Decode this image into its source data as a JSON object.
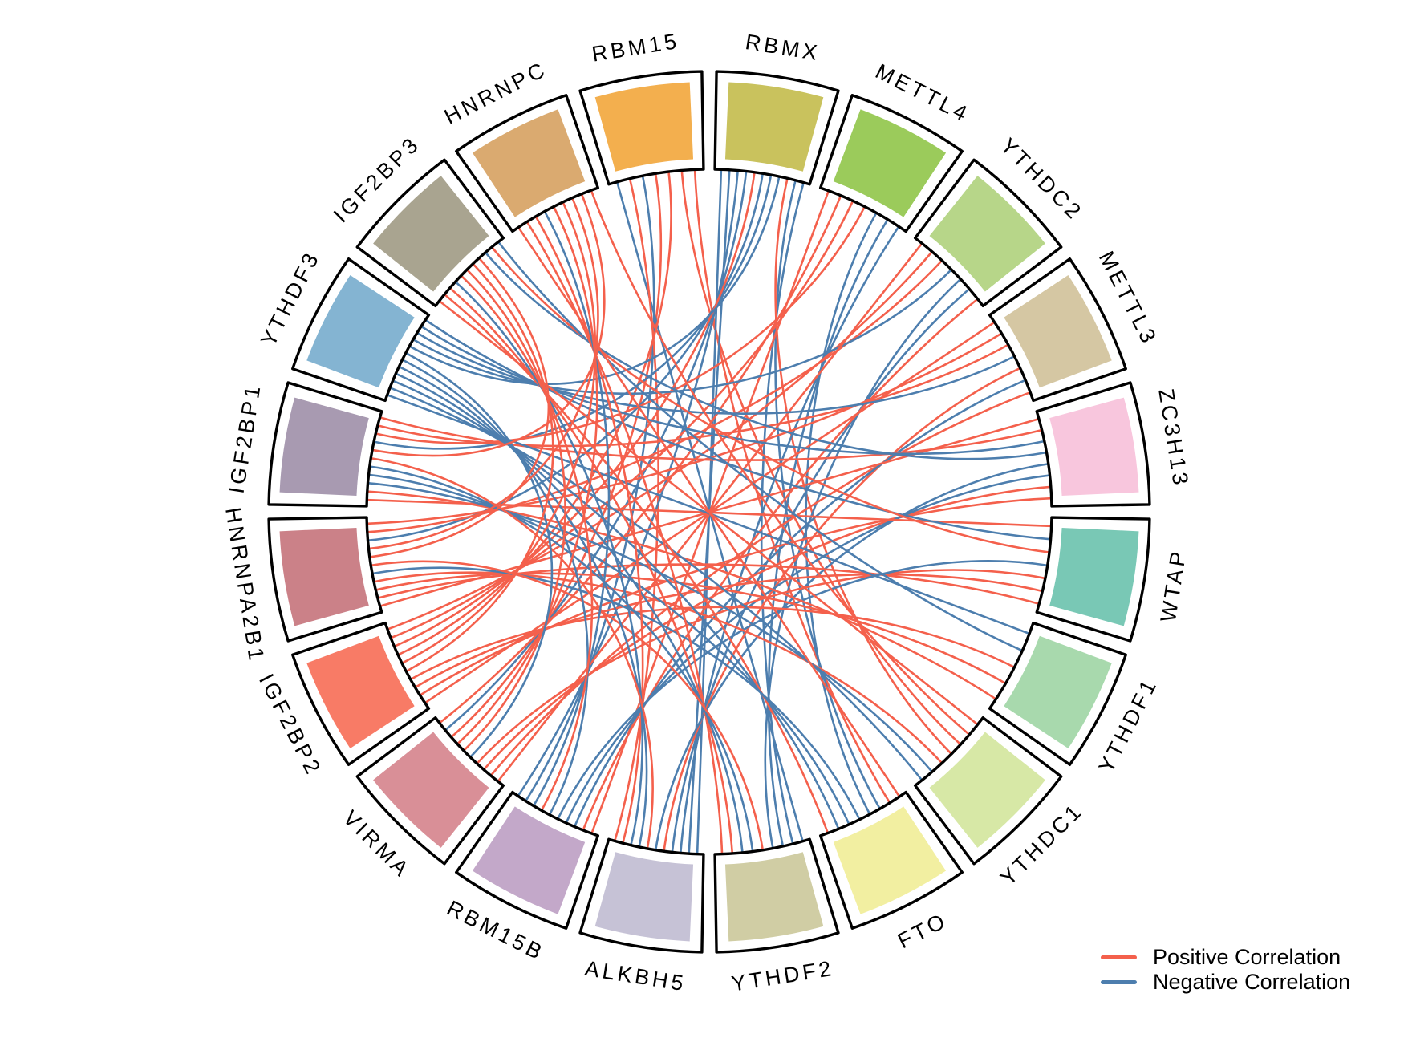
{
  "background": "#ffffff",
  "legend": {
    "items": [
      {
        "id": "positive",
        "label": "Positive Correlation",
        "color": "#F4604C"
      },
      {
        "id": "negative",
        "label": "Negative Correlation",
        "color": "#4D7EAE"
      }
    ]
  },
  "chart_data": {
    "type": "chord",
    "title": "",
    "legend_position": "bottom-right",
    "label_color": "#000000",
    "ring_outline_color": "#000000",
    "positive_color": "#F4604C",
    "negative_color": "#4D7EAE",
    "categories": [
      "RBM15",
      "RBMX",
      "METTL4",
      "YTHDC2",
      "METTL3",
      "ZC3H13",
      "WTAP",
      "YTHDF1",
      "YTHDC1",
      "FTO",
      "YTHDF2",
      "ALKBH5",
      "RBM15B",
      "VIRMA",
      "IGF2BP2",
      "HNRNPA2B1",
      "IGF2BP1",
      "YTHDF3",
      "IGF2BP3",
      "HNRNPC"
    ],
    "genes": [
      {
        "name": "RBM15",
        "color": "#F3AF4E"
      },
      {
        "name": "RBMX",
        "color": "#C9C25D"
      },
      {
        "name": "METTL4",
        "color": "#9BCB5B"
      },
      {
        "name": "YTHDC2",
        "color": "#B7D689"
      },
      {
        "name": "METTL3",
        "color": "#D5C7A3"
      },
      {
        "name": "ZC3H13",
        "color": "#F8C6DD"
      },
      {
        "name": "WTAP",
        "color": "#79C8B5"
      },
      {
        "name": "YTHDF1",
        "color": "#A8D9AD"
      },
      {
        "name": "YTHDC1",
        "color": "#D7E8A6"
      },
      {
        "name": "FTO",
        "color": "#F2EFA1"
      },
      {
        "name": "YTHDF2",
        "color": "#D0CDA4"
      },
      {
        "name": "ALKBH5",
        "color": "#C6C2D6"
      },
      {
        "name": "RBM15B",
        "color": "#C3A8C9"
      },
      {
        "name": "VIRMA",
        "color": "#D98F97"
      },
      {
        "name": "IGF2BP2",
        "color": "#F87B66"
      },
      {
        "name": "HNRNPA2B1",
        "color": "#CB8188"
      },
      {
        "name": "IGF2BP1",
        "color": "#A89AB1"
      },
      {
        "name": "YTHDF3",
        "color": "#84B4D2"
      },
      {
        "name": "IGF2BP3",
        "color": "#A9A490"
      },
      {
        "name": "HNRNPC",
        "color": "#DAAA70"
      }
    ],
    "links": [
      {
        "source": "RBM15",
        "target": "VIRMA",
        "correlation": "positive"
      },
      {
        "source": "RBM15",
        "target": "RBM15B",
        "correlation": "negative"
      },
      {
        "source": "RBM15",
        "target": "YTHDF2",
        "correlation": "negative"
      },
      {
        "source": "RBM15",
        "target": "FTO",
        "correlation": "positive"
      },
      {
        "source": "RBM15",
        "target": "YTHDC1",
        "correlation": "positive"
      },
      {
        "source": "RBM15",
        "target": "ALKBH5",
        "correlation": "positive"
      },
      {
        "source": "RBM15",
        "target": "IGF2BP2",
        "correlation": "positive"
      },
      {
        "source": "RBMX",
        "target": "ALKBH5",
        "correlation": "negative"
      },
      {
        "source": "RBMX",
        "target": "ALKBH5",
        "correlation": "negative"
      },
      {
        "source": "RBMX",
        "target": "RBM15B",
        "correlation": "negative"
      },
      {
        "source": "RBMX",
        "target": "VIRMA",
        "correlation": "negative"
      },
      {
        "source": "RBMX",
        "target": "YTHDF2",
        "correlation": "negative"
      },
      {
        "source": "RBMX",
        "target": "HNRNPA2B1",
        "correlation": "negative"
      },
      {
        "source": "RBMX",
        "target": "IGF2BP1",
        "correlation": "negative"
      },
      {
        "source": "RBMX",
        "target": "FTO",
        "correlation": "negative"
      },
      {
        "source": "RBMX",
        "target": "YTHDC1",
        "correlation": "positive"
      },
      {
        "source": "RBMX",
        "target": "IGF2BP2",
        "correlation": "positive"
      },
      {
        "source": "RBMX",
        "target": "YTHDF3",
        "correlation": "negative"
      },
      {
        "source": "METTL4",
        "target": "YTHDF2",
        "correlation": "negative"
      },
      {
        "source": "METTL4",
        "target": "ALKBH5",
        "correlation": "negative"
      },
      {
        "source": "METTL4",
        "target": "VIRMA",
        "correlation": "positive"
      },
      {
        "source": "METTL4",
        "target": "IGF2BP1",
        "correlation": "positive"
      },
      {
        "source": "METTL4",
        "target": "FTO",
        "correlation": "negative"
      },
      {
        "source": "METTL4",
        "target": "RBM15B",
        "correlation": "positive"
      },
      {
        "source": "METTL4",
        "target": "IGF2BP2",
        "correlation": "positive"
      },
      {
        "source": "YTHDC2",
        "target": "HNRNPA2B1",
        "correlation": "positive"
      },
      {
        "source": "YTHDC2",
        "target": "IGF2BP2",
        "correlation": "positive"
      },
      {
        "source": "YTHDC2",
        "target": "ALKBH5",
        "correlation": "negative"
      },
      {
        "source": "YTHDC2",
        "target": "YTHDF2",
        "correlation": "negative"
      },
      {
        "source": "YTHDC2",
        "target": "YTHDF3",
        "correlation": "negative"
      },
      {
        "source": "YTHDC2",
        "target": "RBM15B",
        "correlation": "positive"
      },
      {
        "source": "YTHDC2",
        "target": "VIRMA",
        "correlation": "positive"
      },
      {
        "source": "METTL3",
        "target": "HNRNPA2B1",
        "correlation": "positive"
      },
      {
        "source": "METTL3",
        "target": "IGF2BP1",
        "correlation": "positive"
      },
      {
        "source": "METTL3",
        "target": "IGF2BP2",
        "correlation": "positive"
      },
      {
        "source": "METTL3",
        "target": "VIRMA",
        "correlation": "positive"
      },
      {
        "source": "METTL3",
        "target": "YTHDF3",
        "correlation": "negative"
      },
      {
        "source": "METTL3",
        "target": "ALKBH5",
        "correlation": "positive"
      },
      {
        "source": "METTL3",
        "target": "RBM15B",
        "correlation": "negative"
      },
      {
        "source": "ZC3H13",
        "target": "IGF2BP1",
        "correlation": "positive"
      },
      {
        "source": "ZC3H13",
        "target": "HNRNPA2B1",
        "correlation": "positive"
      },
      {
        "source": "ZC3H13",
        "target": "IGF2BP2",
        "correlation": "positive"
      },
      {
        "source": "ZC3H13",
        "target": "VIRMA",
        "correlation": "positive"
      },
      {
        "source": "ZC3H13",
        "target": "YTHDF3",
        "correlation": "negative"
      },
      {
        "source": "ZC3H13",
        "target": "IGF2BP3",
        "correlation": "negative"
      },
      {
        "source": "ZC3H13",
        "target": "RBM15B",
        "correlation": "negative"
      },
      {
        "source": "ZC3H13",
        "target": "ALKBH5",
        "correlation": "negative"
      },
      {
        "source": "WTAP",
        "target": "IGF2BP2",
        "correlation": "positive"
      },
      {
        "source": "WTAP",
        "target": "HNRNPA2B1",
        "correlation": "positive"
      },
      {
        "source": "WTAP",
        "target": "VIRMA",
        "correlation": "positive"
      },
      {
        "source": "WTAP",
        "target": "IGF2BP1",
        "correlation": "positive"
      },
      {
        "source": "WTAP",
        "target": "YTHDF3",
        "correlation": "negative"
      },
      {
        "source": "WTAP",
        "target": "RBM15B",
        "correlation": "negative"
      },
      {
        "source": "WTAP",
        "target": "IGF2BP3",
        "correlation": "positive"
      },
      {
        "source": "YTHDF1",
        "target": "YTHDF3",
        "correlation": "negative"
      },
      {
        "source": "YTHDF1",
        "target": "HNRNPA2B1",
        "correlation": "positive"
      },
      {
        "source": "YTHDF1",
        "target": "IGF2BP1",
        "correlation": "positive"
      },
      {
        "source": "YTHDF1",
        "target": "IGF2BP3",
        "correlation": "negative"
      },
      {
        "source": "YTHDF1",
        "target": "IGF2BP2",
        "correlation": "positive"
      },
      {
        "source": "YTHDC1",
        "target": "YTHDF3",
        "correlation": "negative"
      },
      {
        "source": "YTHDC1",
        "target": "IGF2BP3",
        "correlation": "positive"
      },
      {
        "source": "YTHDC1",
        "target": "HNRNPC",
        "correlation": "positive"
      },
      {
        "source": "YTHDC1",
        "target": "HNRNPA2B1",
        "correlation": "positive"
      },
      {
        "source": "YTHDC1",
        "target": "IGF2BP1",
        "correlation": "negative"
      },
      {
        "source": "FTO",
        "target": "YTHDF3",
        "correlation": "negative"
      },
      {
        "source": "FTO",
        "target": "HNRNPC",
        "correlation": "positive"
      },
      {
        "source": "FTO",
        "target": "IGF2BP3",
        "correlation": "positive"
      },
      {
        "source": "FTO",
        "target": "IGF2BP1",
        "correlation": "negative"
      },
      {
        "source": "FTO",
        "target": "HNRNPA2B1",
        "correlation": "negative"
      },
      {
        "source": "YTHDF2",
        "target": "HNRNPC",
        "correlation": "positive"
      },
      {
        "source": "YTHDF2",
        "target": "IGF2BP3",
        "correlation": "positive"
      },
      {
        "source": "YTHDF2",
        "target": "YTHDF3",
        "correlation": "negative"
      },
      {
        "source": "YTHDF2",
        "target": "IGF2BP1",
        "correlation": "negative"
      },
      {
        "source": "YTHDF2",
        "target": "HNRNPA2B1",
        "correlation": "positive"
      },
      {
        "source": "ALKBH5",
        "target": "HNRNPC",
        "correlation": "positive"
      },
      {
        "source": "ALKBH5",
        "target": "IGF2BP3",
        "correlation": "negative"
      },
      {
        "source": "ALKBH5",
        "target": "YTHDF3",
        "correlation": "negative"
      },
      {
        "source": "ALKBH5",
        "target": "IGF2BP1",
        "correlation": "positive"
      },
      {
        "source": "RBM15B",
        "target": "HNRNPC",
        "correlation": "negative"
      },
      {
        "source": "RBM15B",
        "target": "YTHDF3",
        "correlation": "negative"
      },
      {
        "source": "RBM15B",
        "target": "IGF2BP3",
        "correlation": "positive"
      },
      {
        "source": "VIRMA",
        "target": "HNRNPC",
        "correlation": "positive"
      },
      {
        "source": "VIRMA",
        "target": "IGF2BP3",
        "correlation": "positive"
      },
      {
        "source": "VIRMA",
        "target": "YTHDF3",
        "correlation": "negative"
      },
      {
        "source": "IGF2BP2",
        "target": "HNRNPC",
        "correlation": "positive"
      },
      {
        "source": "IGF2BP2",
        "target": "IGF2BP3",
        "correlation": "positive"
      },
      {
        "source": "HNRNPA2B1",
        "target": "HNRNPC",
        "correlation": "positive"
      },
      {
        "source": "HNRNPA2B1",
        "target": "IGF2BP3",
        "correlation": "positive"
      },
      {
        "source": "IGF2BP1",
        "target": "HNRNPC",
        "correlation": "positive"
      }
    ]
  }
}
